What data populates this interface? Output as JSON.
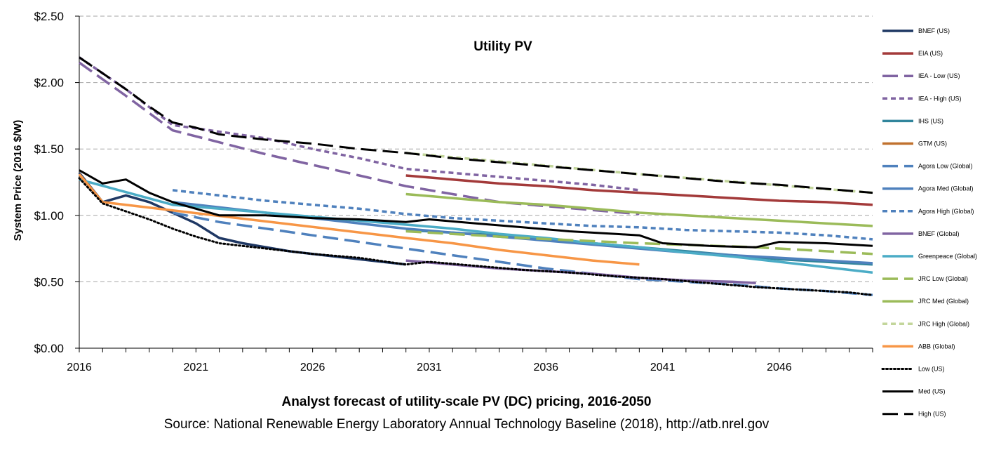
{
  "chart_data": {
    "type": "line",
    "title": "Utility PV",
    "ylabel": "System Price (2016 $/W)",
    "xlabel": "",
    "xlim": [
      2016,
      2050
    ],
    "ylim": [
      0,
      2.5
    ],
    "x_ticks": [
      2016,
      2021,
      2026,
      2031,
      2036,
      2041,
      2046
    ],
    "x_tick_labels": [
      "2016",
      "2021",
      "2026",
      "2031",
      "2036",
      "2041",
      "2046"
    ],
    "y_ticks": [
      0,
      0.5,
      1.0,
      1.5,
      2.0,
      2.5
    ],
    "y_tick_labels": [
      "$0.00",
      "$0.50",
      "$1.00",
      "$1.50",
      "$2.00",
      "$2.50"
    ],
    "grid": "horizontal dashed",
    "legend_position": "right",
    "caption_line1": "Analyst forecast of utility-scale PV (DC) pricing, 2016-2050",
    "caption_line2": "Source: National Renewable Energy Laboratory Annual Technology Baseline (2018), http://atb.nrel.gov",
    "series": [
      {
        "name": "BNEF (US)",
        "color": "#1f3864",
        "dash": "solid",
        "points": [
          [
            2016,
            1.32
          ],
          [
            2017,
            1.1
          ],
          [
            2018,
            1.15
          ],
          [
            2019,
            1.1
          ],
          [
            2020,
            1.02
          ],
          [
            2021,
            0.94
          ],
          [
            2022,
            0.83
          ],
          [
            2023,
            0.79
          ],
          [
            2024,
            0.76
          ],
          [
            2025,
            0.73
          ],
          [
            2026,
            0.71
          ],
          [
            2027,
            0.69
          ],
          [
            2028,
            0.67
          ],
          [
            2029,
            0.65
          ],
          [
            2030,
            0.63
          ]
        ]
      },
      {
        "name": "EIA (US)",
        "color": "#a33a3a",
        "dash": "solid",
        "points": [
          [
            2030,
            1.3
          ],
          [
            2032,
            1.27
          ],
          [
            2034,
            1.24
          ],
          [
            2036,
            1.22
          ],
          [
            2038,
            1.19
          ],
          [
            2040,
            1.17
          ],
          [
            2042,
            1.15
          ],
          [
            2044,
            1.13
          ],
          [
            2046,
            1.11
          ],
          [
            2048,
            1.1
          ],
          [
            2050,
            1.08
          ]
        ]
      },
      {
        "name": "IEA - Low (US)",
        "color": "#8064a2",
        "dash": "longdash",
        "points": [
          [
            2016,
            2.15
          ],
          [
            2018,
            1.9
          ],
          [
            2020,
            1.64
          ],
          [
            2022,
            1.55
          ],
          [
            2024,
            1.46
          ],
          [
            2026,
            1.38
          ],
          [
            2028,
            1.3
          ],
          [
            2030,
            1.22
          ],
          [
            2032,
            1.16
          ],
          [
            2034,
            1.1
          ],
          [
            2036,
            1.07
          ],
          [
            2038,
            1.04
          ],
          [
            2040,
            1.01
          ]
        ]
      },
      {
        "name": "IEA - High (US)",
        "color": "#8064a2",
        "dash": "shortdash",
        "points": [
          [
            2016,
            2.19
          ],
          [
            2018,
            1.95
          ],
          [
            2020,
            1.68
          ],
          [
            2022,
            1.63
          ],
          [
            2024,
            1.58
          ],
          [
            2026,
            1.5
          ],
          [
            2028,
            1.43
          ],
          [
            2030,
            1.35
          ],
          [
            2032,
            1.32
          ],
          [
            2034,
            1.29
          ],
          [
            2036,
            1.26
          ],
          [
            2038,
            1.23
          ],
          [
            2040,
            1.19
          ]
        ]
      },
      {
        "name": "IHS (US)",
        "color": "#31859c",
        "dash": "solid",
        "points": [
          [
            2030,
            0.89
          ],
          [
            2032,
            0.87
          ],
          [
            2034,
            0.85
          ],
          [
            2036,
            0.82
          ],
          [
            2038,
            0.79
          ],
          [
            2040,
            0.76
          ],
          [
            2042,
            0.73
          ],
          [
            2044,
            0.7
          ],
          [
            2046,
            0.67
          ],
          [
            2048,
            0.65
          ],
          [
            2050,
            0.63
          ]
        ]
      },
      {
        "name": "GTM (US)",
        "color": "#c0712e",
        "dash": "solid",
        "points": []
      },
      {
        "name": "Agora Low (Global)",
        "color": "#4f81bd",
        "dash": "longdash",
        "points": [
          [
            2020,
            1.02
          ],
          [
            2022,
            0.95
          ],
          [
            2024,
            0.9
          ],
          [
            2026,
            0.85
          ],
          [
            2028,
            0.8
          ],
          [
            2030,
            0.75
          ],
          [
            2032,
            0.7
          ],
          [
            2034,
            0.65
          ],
          [
            2036,
            0.6
          ],
          [
            2038,
            0.56
          ],
          [
            2040,
            0.52
          ],
          [
            2042,
            0.5
          ],
          [
            2044,
            0.48
          ],
          [
            2046,
            0.45
          ],
          [
            2048,
            0.43
          ],
          [
            2050,
            0.4
          ]
        ]
      },
      {
        "name": "Agora Med (Global)",
        "color": "#4f81bd",
        "dash": "solid",
        "points": [
          [
            2020,
            1.1
          ],
          [
            2022,
            1.06
          ],
          [
            2024,
            1.02
          ],
          [
            2026,
            0.98
          ],
          [
            2028,
            0.94
          ],
          [
            2030,
            0.9
          ],
          [
            2032,
            0.87
          ],
          [
            2034,
            0.84
          ],
          [
            2036,
            0.81
          ],
          [
            2038,
            0.78
          ],
          [
            2040,
            0.75
          ],
          [
            2042,
            0.72
          ],
          [
            2044,
            0.7
          ],
          [
            2046,
            0.68
          ],
          [
            2048,
            0.66
          ],
          [
            2050,
            0.64
          ]
        ]
      },
      {
        "name": "Agora High (Global)",
        "color": "#4f81bd",
        "dash": "shortdash",
        "points": [
          [
            2020,
            1.19
          ],
          [
            2022,
            1.15
          ],
          [
            2024,
            1.11
          ],
          [
            2026,
            1.08
          ],
          [
            2028,
            1.05
          ],
          [
            2030,
            1.01
          ],
          [
            2032,
            0.98
          ],
          [
            2034,
            0.96
          ],
          [
            2036,
            0.94
          ],
          [
            2038,
            0.92
          ],
          [
            2040,
            0.91
          ],
          [
            2042,
            0.89
          ],
          [
            2044,
            0.88
          ],
          [
            2046,
            0.87
          ],
          [
            2048,
            0.85
          ],
          [
            2050,
            0.82
          ]
        ]
      },
      {
        "name": "BNEF (Global)",
        "color": "#8064a2",
        "dash": "solid",
        "points": [
          [
            2030,
            0.66
          ],
          [
            2032,
            0.63
          ],
          [
            2034,
            0.6
          ],
          [
            2036,
            0.58
          ],
          [
            2038,
            0.56
          ],
          [
            2040,
            0.53
          ],
          [
            2042,
            0.51
          ],
          [
            2044,
            0.5
          ],
          [
            2045,
            0.49
          ]
        ]
      },
      {
        "name": "Greenpeace (Global)",
        "color": "#4bacc6",
        "dash": "solid",
        "points": [
          [
            2016,
            1.27
          ],
          [
            2020,
            1.08
          ],
          [
            2022,
            1.05
          ],
          [
            2024,
            1.02
          ],
          [
            2026,
            0.99
          ],
          [
            2028,
            0.96
          ],
          [
            2030,
            0.93
          ],
          [
            2032,
            0.9
          ],
          [
            2034,
            0.86
          ],
          [
            2036,
            0.83
          ],
          [
            2038,
            0.79
          ],
          [
            2040,
            0.76
          ],
          [
            2042,
            0.72
          ],
          [
            2044,
            0.69
          ],
          [
            2046,
            0.65
          ],
          [
            2048,
            0.61
          ],
          [
            2050,
            0.57
          ]
        ]
      },
      {
        "name": "JRC Low (Global)",
        "color": "#9bbb59",
        "dash": "longdash",
        "points": [
          [
            2030,
            0.88
          ],
          [
            2035,
            0.83
          ],
          [
            2040,
            0.79
          ],
          [
            2045,
            0.76
          ],
          [
            2050,
            0.71
          ]
        ]
      },
      {
        "name": "JRC Med (Global)",
        "color": "#9bbb59",
        "dash": "solid",
        "points": [
          [
            2030,
            1.16
          ],
          [
            2032,
            1.13
          ],
          [
            2034,
            1.1
          ],
          [
            2036,
            1.08
          ],
          [
            2038,
            1.05
          ],
          [
            2040,
            1.02
          ],
          [
            2042,
            1.0
          ],
          [
            2044,
            0.98
          ],
          [
            2046,
            0.96
          ],
          [
            2048,
            0.94
          ],
          [
            2050,
            0.92
          ]
        ]
      },
      {
        "name": "JRC High (Global)",
        "color": "#c3d69b",
        "dash": "shortdash",
        "points": [
          [
            2030,
            1.47
          ],
          [
            2035,
            1.39
          ],
          [
            2040,
            1.31
          ],
          [
            2045,
            1.24
          ],
          [
            2050,
            1.17
          ]
        ]
      },
      {
        "name": "ABB (Global)",
        "color": "#f79646",
        "dash": "solid",
        "points": [
          [
            2016,
            1.31
          ],
          [
            2017,
            1.1
          ],
          [
            2030,
            0.83
          ],
          [
            2032,
            0.79
          ],
          [
            2034,
            0.74
          ],
          [
            2036,
            0.7
          ],
          [
            2038,
            0.66
          ],
          [
            2040,
            0.63
          ]
        ]
      },
      {
        "name": "Low (US)",
        "color": "#000000",
        "dash": "dotted",
        "points": [
          [
            2016,
            1.28
          ],
          [
            2017,
            1.09
          ],
          [
            2018,
            1.03
          ],
          [
            2019,
            0.97
          ],
          [
            2020,
            0.9
          ],
          [
            2021,
            0.84
          ],
          [
            2022,
            0.79
          ],
          [
            2024,
            0.75
          ],
          [
            2026,
            0.71
          ],
          [
            2028,
            0.68
          ],
          [
            2030,
            0.63
          ],
          [
            2031,
            0.65
          ],
          [
            2033,
            0.62
          ],
          [
            2035,
            0.59
          ],
          [
            2037,
            0.57
          ],
          [
            2039,
            0.54
          ],
          [
            2041,
            0.52
          ],
          [
            2043,
            0.49
          ],
          [
            2045,
            0.46
          ],
          [
            2047,
            0.44
          ],
          [
            2049,
            0.42
          ],
          [
            2050,
            0.4
          ]
        ]
      },
      {
        "name": "Med (US)",
        "color": "#000000",
        "dash": "solid",
        "points": [
          [
            2016,
            1.34
          ],
          [
            2017,
            1.24
          ],
          [
            2018,
            1.27
          ],
          [
            2019,
            1.17
          ],
          [
            2020,
            1.1
          ],
          [
            2021,
            1.05
          ],
          [
            2022,
            1.0
          ],
          [
            2024,
            1.0
          ],
          [
            2026,
            0.98
          ],
          [
            2028,
            0.97
          ],
          [
            2030,
            0.95
          ],
          [
            2031,
            0.97
          ],
          [
            2033,
            0.94
          ],
          [
            2035,
            0.91
          ],
          [
            2037,
            0.88
          ],
          [
            2039,
            0.86
          ],
          [
            2040,
            0.85
          ],
          [
            2041,
            0.79
          ],
          [
            2043,
            0.77
          ],
          [
            2045,
            0.76
          ],
          [
            2046,
            0.8
          ],
          [
            2048,
            0.79
          ],
          [
            2050,
            0.77
          ]
        ]
      },
      {
        "name": "High (US)",
        "color": "#000000",
        "dash": "longdash",
        "points": [
          [
            2016,
            2.19
          ],
          [
            2017,
            2.07
          ],
          [
            2018,
            1.95
          ],
          [
            2019,
            1.82
          ],
          [
            2020,
            1.7
          ],
          [
            2021,
            1.66
          ],
          [
            2022,
            1.61
          ],
          [
            2024,
            1.57
          ],
          [
            2026,
            1.54
          ],
          [
            2028,
            1.5
          ],
          [
            2030,
            1.47
          ],
          [
            2032,
            1.43
          ],
          [
            2034,
            1.4
          ],
          [
            2036,
            1.37
          ],
          [
            2038,
            1.34
          ],
          [
            2040,
            1.31
          ],
          [
            2042,
            1.28
          ],
          [
            2044,
            1.25
          ],
          [
            2046,
            1.23
          ],
          [
            2048,
            1.2
          ],
          [
            2050,
            1.17
          ]
        ]
      }
    ]
  }
}
